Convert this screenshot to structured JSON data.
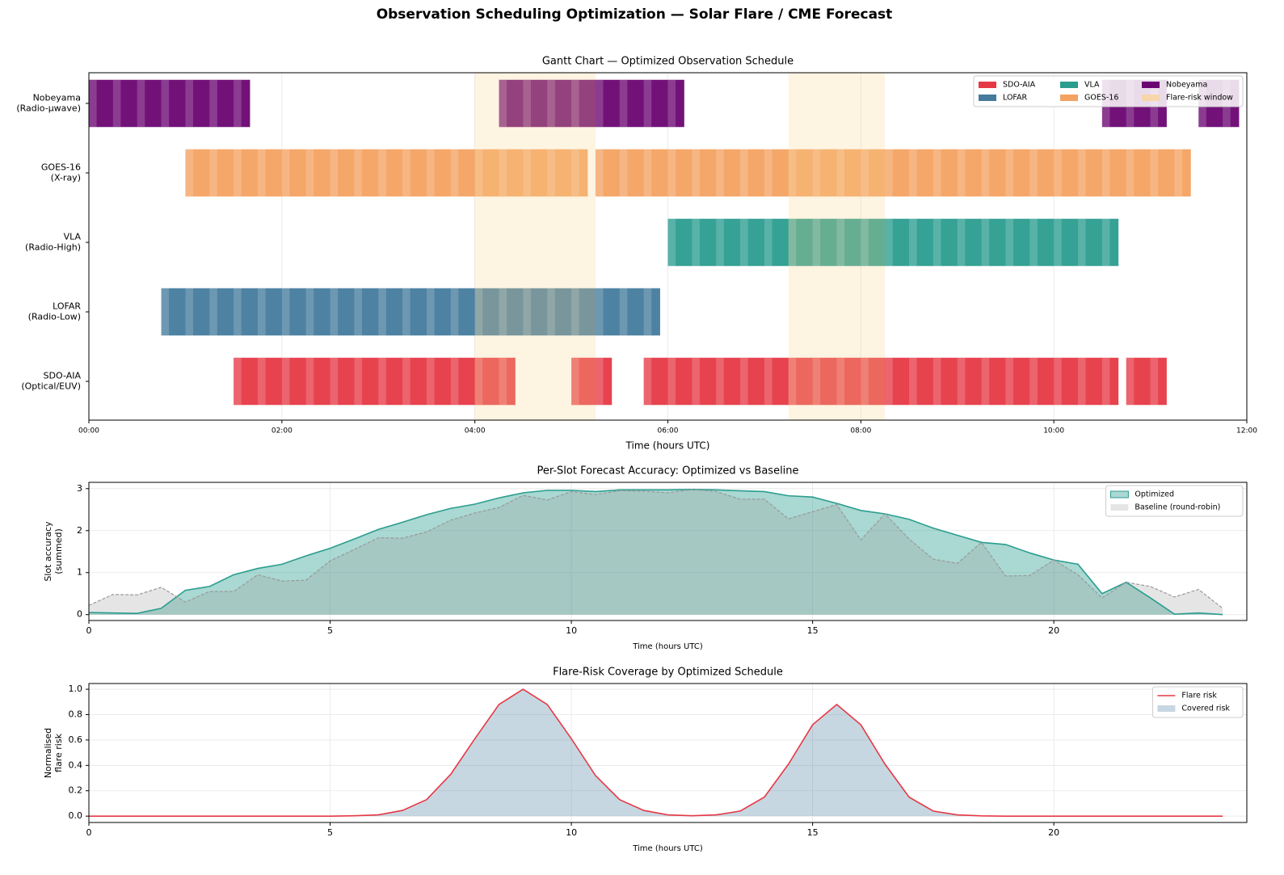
{
  "title": "Observation Scheduling Optimization — Solar Flare / CME Forecast",
  "chart_data": [
    {
      "type": "gantt",
      "title": "Gantt Chart — Optimized Observation Schedule",
      "x_label": "Time (hours UTC)",
      "xlim": [
        0,
        12
      ],
      "xticks": [
        {
          "value": 0,
          "label": "00:00"
        },
        {
          "value": 2,
          "label": "02:00"
        },
        {
          "value": 4,
          "label": "04:00"
        },
        {
          "value": 6,
          "label": "06:00"
        },
        {
          "value": 8,
          "label": "08:00"
        },
        {
          "value": 10,
          "label": "10:00"
        },
        {
          "value": 12,
          "label": "12:00"
        }
      ],
      "categories": [
        [
          "SDO-AIA",
          "(Optical/EUV)"
        ],
        [
          "LOFAR",
          "(Radio-Low)"
        ],
        [
          "VLA",
          "(Radio-High)"
        ],
        [
          "GOES-16",
          "(X-ray)"
        ],
        [
          "Nobeyama",
          "(Radio-μwave)"
        ]
      ],
      "series": [
        {
          "name": "SDO-AIA",
          "color": "#e63946",
          "segments": [
            [
              1.5,
              4.42
            ],
            [
              5.0,
              5.42
            ],
            [
              5.75,
              10.67
            ],
            [
              10.75,
              11.17
            ]
          ]
        },
        {
          "name": "LOFAR",
          "color": "#457b9d",
          "segments": [
            [
              0.75,
              5.92
            ]
          ]
        },
        {
          "name": "VLA",
          "color": "#2a9d8f",
          "segments": [
            [
              6.0,
              10.67
            ]
          ]
        },
        {
          "name": "GOES-16",
          "color": "#f4a261",
          "segments": [
            [
              1.0,
              5.17
            ],
            [
              5.25,
              11.42
            ]
          ]
        },
        {
          "name": "Nobeyama",
          "color": "#6a0572",
          "segments": [
            [
              0,
              1.67
            ],
            [
              4.25,
              6.17
            ],
            [
              10.5,
              11.17
            ],
            [
              11.5,
              11.92
            ]
          ]
        }
      ],
      "windows": [
        [
          4.0,
          5.25
        ],
        [
          7.25,
          8.25
        ]
      ],
      "window_label": "Flare-risk window",
      "window_color": "#fbd38d",
      "grid": true,
      "legend": "upper right"
    },
    {
      "type": "area",
      "title": "Per-Slot Forecast Accuracy: Optimized vs Baseline",
      "x_label": "Time (hours UTC)",
      "y_label": [
        "Slot accuracy",
        "(summed)"
      ],
      "xlim": [
        0,
        24
      ],
      "xticks": [
        0,
        5,
        10,
        15,
        20
      ],
      "ylim": [
        -0.14,
        3.15
      ],
      "yticks": [
        0,
        1,
        2,
        3
      ],
      "x": [
        0,
        0.5,
        1,
        1.5,
        2,
        2.5,
        3,
        3.5,
        4,
        4.5,
        5,
        5.5,
        6,
        6.5,
        7,
        7.5,
        8,
        8.5,
        9,
        9.5,
        10,
        10.5,
        11,
        11.5,
        12,
        12.5,
        13,
        13.5,
        14,
        14.5,
        15,
        15.5,
        16,
        16.5,
        17,
        17.5,
        18,
        18.5,
        19,
        19.5,
        20,
        20.5,
        21,
        21.5,
        22,
        22.5,
        23,
        23.5
      ],
      "series": [
        {
          "name": "Optimized",
          "color": "#2a9d8f",
          "fill": true,
          "line": true,
          "dash": false,
          "values": [
            0.05,
            0.04,
            0.03,
            0.15,
            0.58,
            0.67,
            0.95,
            1.1,
            1.2,
            1.4,
            1.58,
            1.8,
            2.03,
            2.2,
            2.38,
            2.53,
            2.63,
            2.78,
            2.9,
            2.96,
            2.96,
            2.93,
            2.97,
            2.97,
            2.97,
            2.98,
            2.97,
            2.95,
            2.93,
            2.83,
            2.8,
            2.65,
            2.48,
            2.4,
            2.27,
            2.06,
            1.89,
            1.72,
            1.67,
            1.47,
            1.3,
            1.2,
            0.5,
            0.77,
            0.4,
            0.01,
            0.04,
            0.0
          ]
        },
        {
          "name": "Baseline (round-robin)",
          "color": "#999999",
          "fill": true,
          "line": true,
          "dash": true,
          "values": [
            0.22,
            0.48,
            0.47,
            0.65,
            0.3,
            0.55,
            0.55,
            0.95,
            0.8,
            0.82,
            1.28,
            1.55,
            1.83,
            1.82,
            1.97,
            2.25,
            2.42,
            2.55,
            2.84,
            2.73,
            2.93,
            2.86,
            2.95,
            2.94,
            2.9,
            2.98,
            2.93,
            2.75,
            2.75,
            2.28,
            2.45,
            2.62,
            1.78,
            2.4,
            1.8,
            1.32,
            1.22,
            1.72,
            0.92,
            0.93,
            1.3,
            0.95,
            0.4,
            0.77,
            0.67,
            0.42,
            0.6,
            0.15
          ]
        }
      ],
      "grid": true,
      "legend": "upper right"
    },
    {
      "type": "area",
      "title": "Flare-Risk Coverage by Optimized Schedule",
      "x_label": "Time (hours UTC)",
      "y_label": [
        "Normalised",
        "flare risk"
      ],
      "xlim": [
        0,
        24
      ],
      "xticks": [
        0,
        5,
        10,
        15,
        20
      ],
      "ylim": [
        -0.05,
        1.045
      ],
      "yticks": [
        {
          "value": 0,
          "label": "0.0"
        },
        0.2,
        0.4,
        0.6,
        0.8,
        {
          "value": 1,
          "label": "1.0"
        }
      ],
      "x": [
        0,
        0.5,
        1,
        1.5,
        2,
        2.5,
        3,
        3.5,
        4,
        4.5,
        5,
        5.5,
        6,
        6.5,
        7,
        7.5,
        8,
        8.5,
        9,
        9.5,
        10,
        10.5,
        11,
        11.5,
        12,
        12.5,
        13,
        13.5,
        14,
        14.5,
        15,
        15.5,
        16,
        16.5,
        17,
        17.5,
        18,
        18.5,
        19,
        19.5,
        20,
        20.5,
        21,
        21.5,
        22,
        22.5,
        23,
        23.5
      ],
      "series": [
        {
          "name": "Flare risk",
          "color": "#e63946",
          "fill": false,
          "line": true,
          "dash": false,
          "values": [
            0,
            0,
            0,
            0,
            0,
            0,
            0,
            0,
            0,
            0,
            0,
            0.003,
            0.01,
            0.045,
            0.13,
            0.33,
            0.61,
            0.88,
            1.0,
            0.88,
            0.61,
            0.32,
            0.13,
            0.045,
            0.01,
            0.003,
            0.01,
            0.04,
            0.15,
            0.41,
            0.72,
            0.88,
            0.72,
            0.41,
            0.15,
            0.04,
            0.01,
            0.002,
            0,
            0,
            0,
            0,
            0,
            0,
            0,
            0,
            0,
            0
          ]
        },
        {
          "name": "Covered risk",
          "color": "#457b9d",
          "fill": true,
          "line": false,
          "dash": false,
          "values": [
            0,
            0,
            0,
            0,
            0,
            0,
            0,
            0,
            0,
            0,
            0,
            0.003,
            0.01,
            0.045,
            0.13,
            0.33,
            0.61,
            0.88,
            1.0,
            0.88,
            0.61,
            0.32,
            0.13,
            0.045,
            0.01,
            0.003,
            0.01,
            0.04,
            0.15,
            0.41,
            0.72,
            0.88,
            0.72,
            0.41,
            0.15,
            0.04,
            0.01,
            0.002,
            0,
            0,
            0,
            0,
            0,
            0,
            0,
            0,
            0,
            0
          ]
        }
      ],
      "grid": true,
      "legend": "upper right"
    }
  ]
}
